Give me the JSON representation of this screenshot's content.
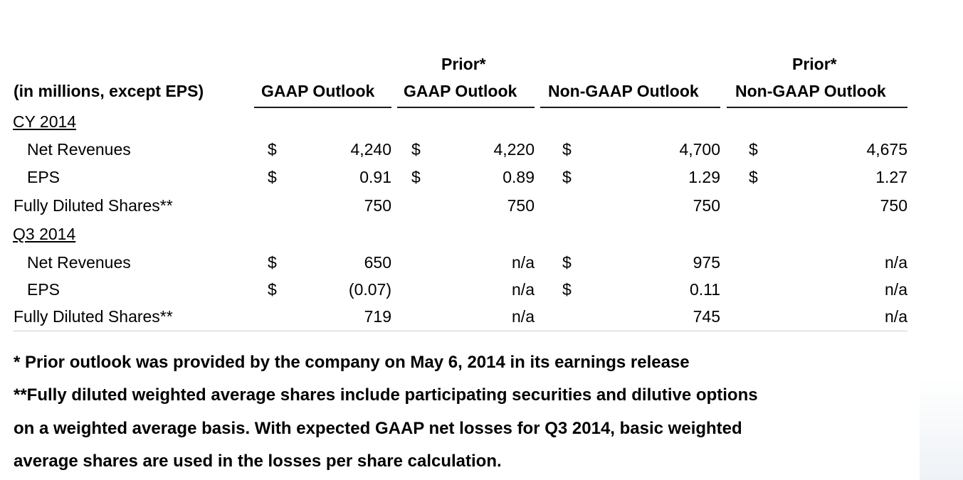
{
  "header": {
    "units_label": "(in millions, except EPS)",
    "prior_label": "Prior*",
    "columns": [
      "GAAP Outlook",
      "GAAP Outlook",
      "Non-GAAP Outlook",
      "Non-GAAP Outlook"
    ]
  },
  "sections": [
    {
      "title": "CY 2014",
      "rows": [
        {
          "label": "Net Revenues",
          "cells": [
            {
              "cur": "$",
              "val": "4,240"
            },
            {
              "cur": "$",
              "val": "4,220"
            },
            {
              "cur": "$",
              "val": "4,700"
            },
            {
              "cur": "$",
              "val": "4,675"
            }
          ]
        },
        {
          "label": "EPS",
          "cells": [
            {
              "cur": "$",
              "val": "0.91"
            },
            {
              "cur": "$",
              "val": "0.89"
            },
            {
              "cur": "$",
              "val": "1.29"
            },
            {
              "cur": "$",
              "val": "1.27"
            }
          ]
        },
        {
          "label": "Fully Diluted Shares**",
          "cells": [
            {
              "cur": "",
              "val": "750"
            },
            {
              "cur": "",
              "val": "750"
            },
            {
              "cur": "",
              "val": "750"
            },
            {
              "cur": "",
              "val": "750"
            }
          ]
        }
      ]
    },
    {
      "title": "Q3 2014",
      "rows": [
        {
          "label": "Net Revenues",
          "cells": [
            {
              "cur": "$",
              "val": "650"
            },
            {
              "cur": "",
              "val": "n/a"
            },
            {
              "cur": "$",
              "val": "975"
            },
            {
              "cur": "",
              "val": "n/a"
            }
          ]
        },
        {
          "label": "EPS",
          "cells": [
            {
              "cur": "$",
              "val": "(0.07)"
            },
            {
              "cur": "",
              "val": "n/a"
            },
            {
              "cur": "$",
              "val": "0.11"
            },
            {
              "cur": "",
              "val": "n/a"
            }
          ]
        },
        {
          "label": "Fully Diluted Shares**",
          "cells": [
            {
              "cur": "",
              "val": "719"
            },
            {
              "cur": "",
              "val": "n/a"
            },
            {
              "cur": "",
              "val": "745"
            },
            {
              "cur": "",
              "val": "n/a"
            }
          ]
        }
      ]
    }
  ],
  "footnotes": [
    "* Prior outlook was provided by the company on May 6, 2014 in its earnings release",
    "**Fully diluted weighted average shares include participating securities and dilutive options",
    "on a weighted average basis. With expected GAAP net losses for Q3 2014, basic weighted",
    "average shares are used in the losses per share calculation."
  ]
}
